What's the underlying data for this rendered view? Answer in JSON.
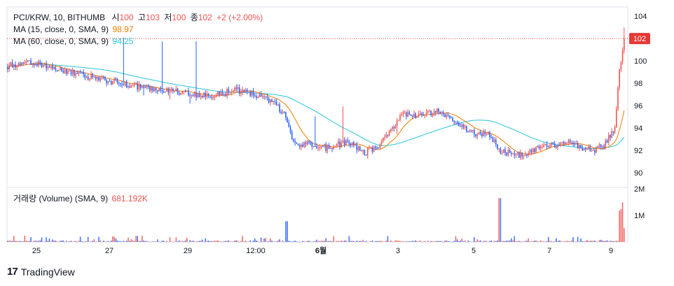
{
  "header": {
    "symbol": "PCI/KRW, 10, BITHUMB",
    "open_label": "시",
    "open": "100",
    "high_label": "고",
    "high": "103",
    "low_label": "저",
    "low": "100",
    "close_label": "종",
    "close": "102",
    "change": "+2 (+2.00%)"
  },
  "ma15": {
    "label": "MA (15, close, 0, SMA, 9)",
    "value": "98.97"
  },
  "ma60": {
    "label": "MA (60, close, 0, SMA, 9)",
    "value": "94.25"
  },
  "volume": {
    "label": "거래량 (Volume) (SMA, 9)",
    "value": "681.192K"
  },
  "price_badge": "102",
  "brand": {
    "logo": "17",
    "name": "TradingView"
  },
  "colors": {
    "up": "#ef5350",
    "down": "#2962ff",
    "ma15": "#f57c00",
    "ma60": "#26c6da",
    "badge": "#e53935"
  },
  "chart_data": {
    "type": "candlestick",
    "title": "PCI/KRW, 10, BITHUMB",
    "price_axis": {
      "ylim": [
        89,
        104.2
      ],
      "ticks": [
        "104",
        "102",
        "100",
        "98",
        "96",
        "94",
        "92",
        "90"
      ]
    },
    "volume_axis": {
      "ylim": [
        0,
        2000000
      ],
      "ticks": [
        "2M",
        "1M"
      ]
    },
    "x_ticks": [
      "25",
      "27",
      "29",
      "12:00",
      "6월",
      "3",
      "5",
      "7",
      "9"
    ],
    "series": [
      {
        "name": "MA (15, close, 0, SMA, 9)",
        "last": 98.97
      },
      {
        "name": "MA (60, close, 0, SMA, 9)",
        "last": 94.25
      },
      {
        "name": "거래량 (Volume)",
        "last": 681192
      }
    ],
    "price_path": [
      [
        0,
        99.5
      ],
      [
        0.03,
        100
      ],
      [
        0.06,
        99.6
      ],
      [
        0.1,
        99.1
      ],
      [
        0.13,
        98.6
      ],
      [
        0.16,
        98.3
      ],
      [
        0.2,
        97.8
      ],
      [
        0.24,
        97.4
      ],
      [
        0.28,
        97.3
      ],
      [
        0.31,
        96.8
      ],
      [
        0.34,
        97.0
      ],
      [
        0.37,
        97.4
      ],
      [
        0.4,
        97.0
      ],
      [
        0.43,
        96.4
      ],
      [
        0.45,
        95.2
      ],
      [
        0.465,
        92.5
      ],
      [
        0.49,
        92.6
      ],
      [
        0.52,
        92.2
      ],
      [
        0.55,
        92.8
      ],
      [
        0.58,
        91.8
      ],
      [
        0.6,
        92.4
      ],
      [
        0.62,
        93.6
      ],
      [
        0.64,
        95.1
      ],
      [
        0.67,
        95.2
      ],
      [
        0.7,
        95.6
      ],
      [
        0.73,
        94.5
      ],
      [
        0.75,
        93.6
      ],
      [
        0.78,
        93.4
      ],
      [
        0.8,
        91.9
      ],
      [
        0.83,
        91.6
      ],
      [
        0.86,
        92.2
      ],
      [
        0.88,
        92.4
      ],
      [
        0.91,
        92.7
      ],
      [
        0.93,
        92.3
      ],
      [
        0.95,
        92.0
      ],
      [
        0.97,
        92.6
      ],
      [
        0.985,
        94.0
      ],
      [
        0.992,
        99.0
      ],
      [
        1.0,
        102
      ]
    ]
  }
}
